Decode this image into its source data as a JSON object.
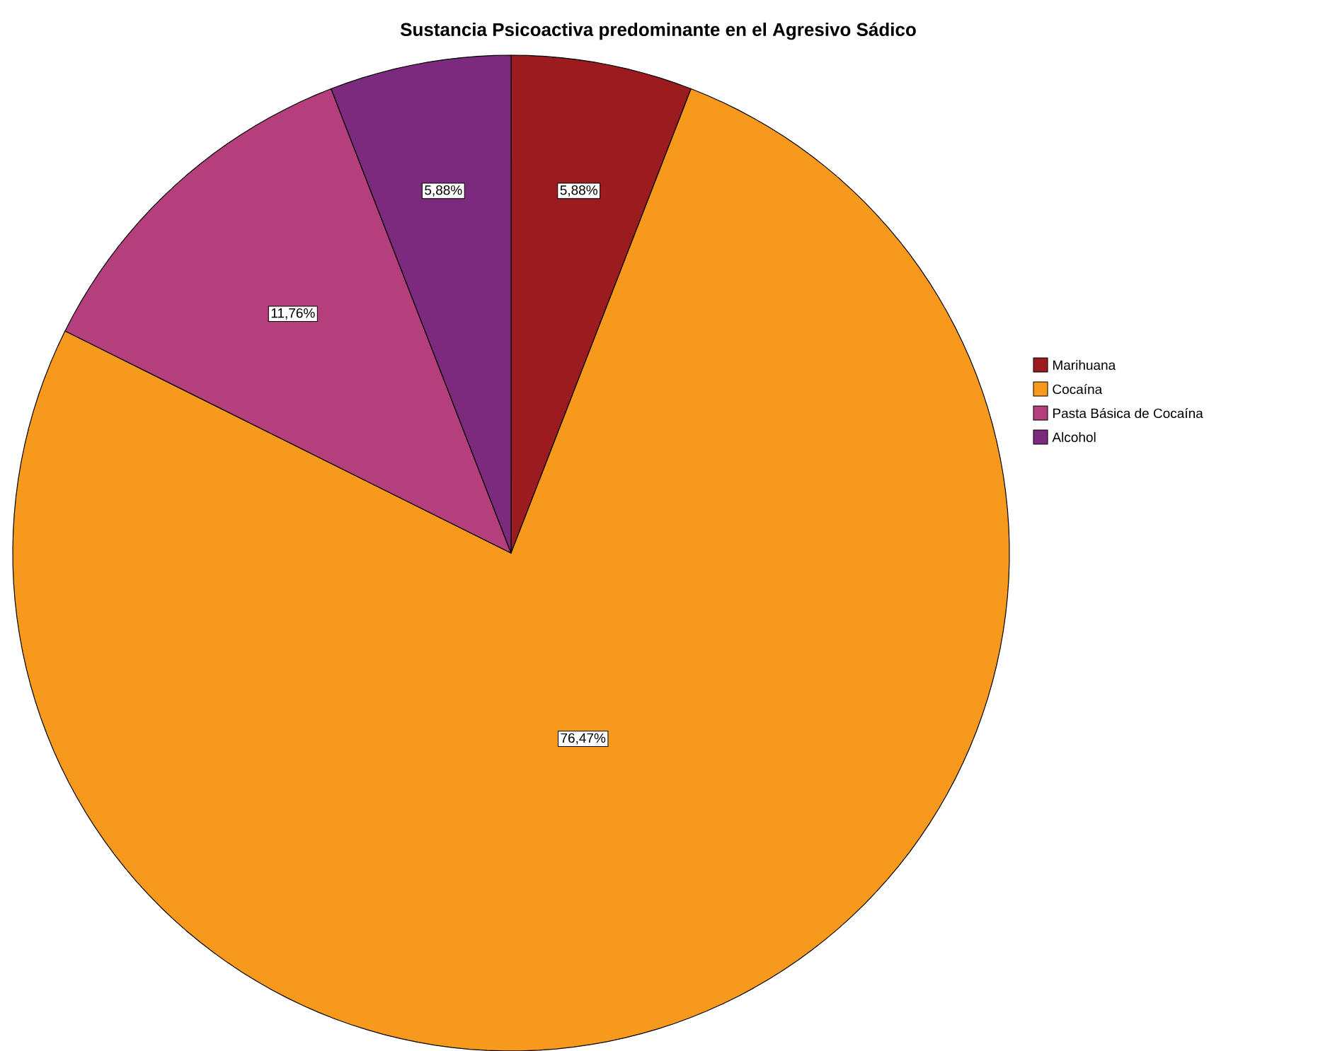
{
  "chart_data": {
    "type": "pie",
    "title": "Sustancia Psicoactiva predominante en el Agresivo Sádico",
    "categories": [
      "Marihuana",
      "Cocaína",
      "Pasta Básica de Cocaína",
      "Alcohol"
    ],
    "values": [
      5.88,
      76.47,
      11.76,
      5.88
    ],
    "colors": [
      "#9b1b1e",
      "#f7991c",
      "#b43f7c",
      "#7b2a7e"
    ],
    "value_labels": [
      "5,88%",
      "76,47%",
      "11,76%",
      "5,88%"
    ],
    "legend": "right"
  }
}
